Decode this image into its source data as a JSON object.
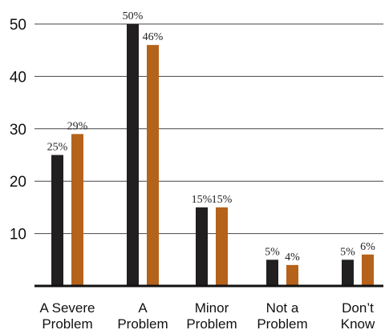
{
  "chart_data": {
    "type": "bar",
    "categories": [
      "A Severe Problem",
      "A Problem",
      "Minor Problem",
      "Not a Problem",
      "Don’t Know"
    ],
    "category_lines": [
      [
        "A Severe",
        "Problem"
      ],
      [
        "A",
        "Problem"
      ],
      [
        "Minor",
        "Problem"
      ],
      [
        "Not a",
        "Problem"
      ],
      [
        "Don’t",
        "Know"
      ]
    ],
    "series": [
      {
        "values": [
          25,
          50,
          15,
          5,
          5
        ],
        "labels": [
          "25%",
          "50%",
          "15%",
          "5%",
          "5%"
        ],
        "color": "#221f20"
      },
      {
        "values": [
          29,
          46,
          15,
          4,
          6
        ],
        "labels": [
          "29%",
          "46%",
          "15%",
          "4%",
          "6%"
        ],
        "color": "#b5621b"
      }
    ],
    "y_ticks": [
      10,
      20,
      30,
      40,
      50
    ],
    "ylim": [
      0,
      50
    ],
    "grid": true,
    "title": "",
    "xlabel": "",
    "ylabel": ""
  }
}
